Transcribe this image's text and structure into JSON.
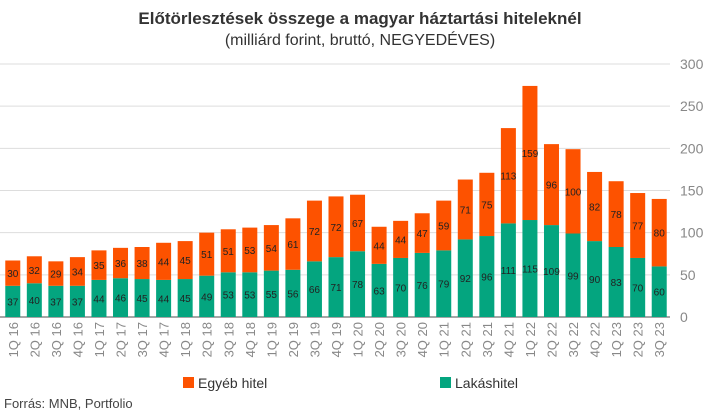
{
  "chart_data": {
    "type": "bar",
    "stacked": true,
    "title": "Előtörlesztések összege a magyar háztartási hiteleknél",
    "subtitle": "(milliárd forint, bruttó, NEGYEDÉVES)",
    "source": "Forrás: MNB, Portfolio",
    "categories": [
      "1Q 16",
      "2Q 16",
      "3Q 16",
      "4Q 16",
      "1Q 17",
      "2Q 17",
      "3Q 17",
      "4Q 17",
      "1Q 18",
      "2Q 18",
      "3Q 18",
      "4Q 18",
      "1Q 19",
      "2Q 19",
      "3Q 19",
      "4Q 19",
      "1Q 20",
      "2Q 20",
      "3Q 20",
      "4Q 20",
      "1Q 21",
      "2Q 21",
      "3Q 21",
      "4Q 21",
      "1Q 22",
      "2Q 22",
      "3Q 22",
      "4Q 22",
      "1Q 23",
      "2Q 23",
      "3Q 23"
    ],
    "series": [
      {
        "name": "Lakáshitel",
        "color": "#04a57f",
        "values": [
          37,
          40,
          37,
          37,
          44,
          46,
          45,
          44,
          45,
          49,
          53,
          53,
          55,
          56,
          66,
          71,
          78,
          63,
          70,
          76,
          79,
          92,
          96,
          111,
          115,
          109,
          99,
          90,
          83,
          70,
          60
        ]
      },
      {
        "name": "Egyéb hitel",
        "color": "#fd5200",
        "values": [
          30,
          32,
          29,
          34,
          35,
          36,
          38,
          44,
          45,
          51,
          51,
          53,
          54,
          61,
          72,
          72,
          67,
          44,
          44,
          47,
          59,
          71,
          75,
          113,
          159,
          96,
          100,
          82,
          78,
          77,
          80
        ]
      }
    ],
    "ylim": [
      0,
      300
    ],
    "yticks": [
      0,
      50,
      100,
      150,
      200,
      250,
      300
    ],
    "grid": true,
    "y_axis_side": "right",
    "legend_placement": "bottom",
    "legend_order": [
      "Egyéb hitel",
      "Lakáshitel"
    ]
  }
}
